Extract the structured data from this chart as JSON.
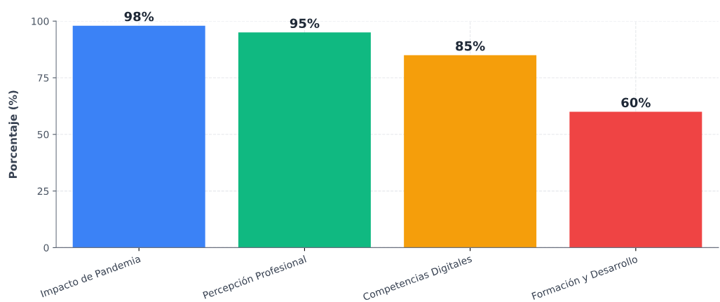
{
  "chart_data": {
    "type": "bar",
    "ylabel": "Porcentaje (%)",
    "categories": [
      "Impacto de Pandemia",
      "Percepción Profesional",
      "Competencias Digitales",
      "Formación y Desarrollo"
    ],
    "values": [
      98,
      95,
      85,
      60
    ],
    "colors": [
      "#3b82f6",
      "#10b981",
      "#f59e0b",
      "#ef4444"
    ],
    "value_labels": [
      "98%",
      "95%",
      "85%",
      "60%"
    ],
    "ylim": [
      0,
      100
    ],
    "yticks": [
      0,
      25,
      50,
      75,
      100
    ],
    "grid": true
  }
}
